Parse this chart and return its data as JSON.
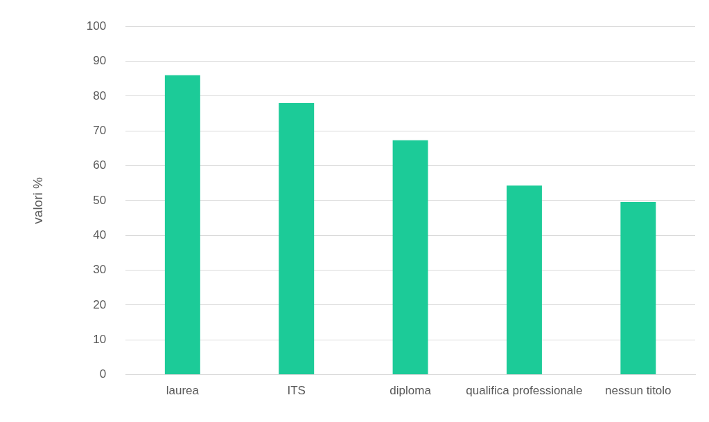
{
  "chart_data": {
    "type": "bar",
    "ylabel": "valori %",
    "categories": [
      "laurea",
      "ITS",
      "diploma",
      "qualifica professionale",
      "nessun titolo"
    ],
    "values": [
      86,
      78,
      67.3,
      54.3,
      49.6
    ],
    "color": "#1ccb98",
    "ylim": [
      0,
      100
    ],
    "yticks": [
      0,
      10,
      20,
      30,
      40,
      50,
      60,
      70,
      80,
      90,
      100
    ],
    "grid": "y",
    "legend": false
  }
}
